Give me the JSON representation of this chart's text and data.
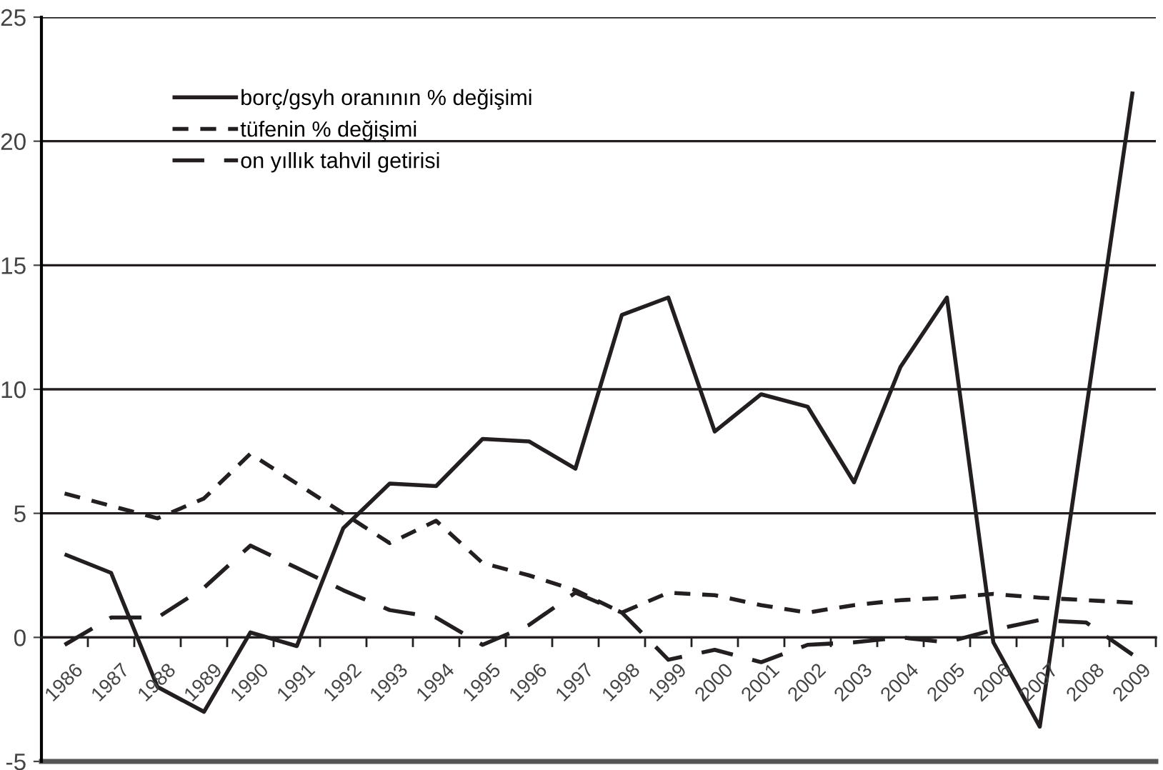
{
  "chart_data": {
    "type": "line",
    "categories": [
      "1986",
      "1987",
      "1988",
      "1989",
      "1990",
      "1991",
      "1992",
      "1993",
      "1994",
      "1995",
      "1996",
      "1997",
      "1998",
      "1999",
      "2000",
      "2001",
      "2002",
      "2003",
      "2004",
      "2005",
      "2006",
      "2007",
      "2008",
      "2009"
    ],
    "series": [
      {
        "name": "borç/gsyh oranının % değişimi",
        "color": "#231f20",
        "line_style": "solid",
        "values": [
          3.35,
          2.6,
          -2.0,
          -3.0,
          0.2,
          -0.35,
          4.4,
          6.2,
          6.1,
          8.0,
          7.9,
          6.8,
          13.0,
          13.7,
          8.3,
          9.8,
          9.3,
          6.25,
          10.9,
          13.7,
          -0.2,
          -3.6,
          9.2,
          22.0
        ]
      },
      {
        "name": "tüfenin % değişimi",
        "color": "#231f20",
        "line_style": "dashed",
        "values": [
          5.8,
          5.3,
          4.8,
          5.6,
          7.4,
          6.2,
          5.0,
          3.8,
          4.7,
          3.0,
          2.5,
          1.9,
          1.0,
          1.8,
          1.7,
          1.3,
          1.0,
          1.3,
          1.5,
          1.6,
          1.75,
          1.6,
          1.5,
          1.4
        ]
      },
      {
        "name": "on yıllık tahvil getirisi",
        "color": "#231f20",
        "line_style": "longdash",
        "values": [
          -0.3,
          0.8,
          0.8,
          2.0,
          3.7,
          2.8,
          1.9,
          1.1,
          0.8,
          -0.3,
          0.5,
          1.8,
          1.0,
          -0.9,
          -0.5,
          -1.0,
          -0.3,
          -0.2,
          0.0,
          -0.2,
          0.3,
          0.7,
          0.6,
          -0.7
        ]
      }
    ],
    "ylim": [
      -5,
      25
    ],
    "yticks": [
      -5,
      0,
      5,
      10,
      15,
      20,
      25
    ],
    "grid": "y",
    "legend": "top left"
  }
}
